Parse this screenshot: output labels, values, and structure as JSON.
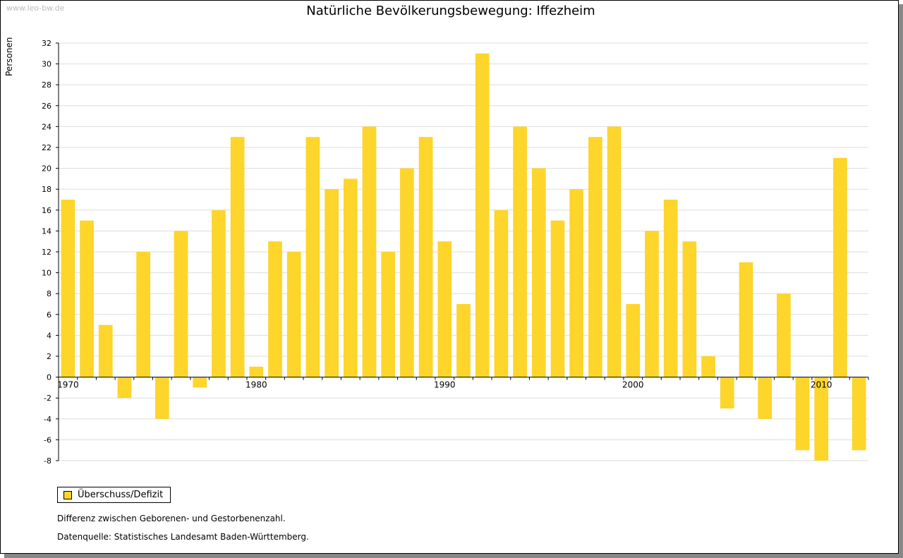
{
  "watermark": "www.leo-bw.de",
  "chart_data": {
    "type": "bar",
    "title": "Natürliche Bevölkerungsbewegung: Iffezheim",
    "ylabel": "Personen",
    "xlabel": "",
    "ylim": [
      -8,
      32
    ],
    "yticks": [
      -8,
      -6,
      -4,
      -2,
      0,
      2,
      4,
      6,
      8,
      10,
      12,
      14,
      16,
      18,
      20,
      22,
      24,
      26,
      28,
      30,
      32
    ],
    "xtick_labels": [
      "1970",
      "1980",
      "1990",
      "2000",
      "2010"
    ],
    "grid": true,
    "legend_position": "bottom-left",
    "color": "#FDD52B",
    "series": [
      {
        "name": "Überschuss/Defizit",
        "x": [
          1970,
          1971,
          1972,
          1973,
          1974,
          1975,
          1976,
          1977,
          1978,
          1979,
          1980,
          1981,
          1982,
          1983,
          1984,
          1985,
          1986,
          1987,
          1988,
          1989,
          1990,
          1991,
          1992,
          1993,
          1994,
          1995,
          1996,
          1997,
          1998,
          1999,
          2000,
          2001,
          2002,
          2003,
          2004,
          2005,
          2006,
          2007,
          2008,
          2009,
          2010,
          2011,
          2012
        ],
        "values": [
          17,
          15,
          5,
          -2,
          12,
          -4,
          14,
          -1,
          16,
          23,
          1,
          13,
          12,
          23,
          18,
          19,
          24,
          12,
          20,
          23,
          13,
          7,
          31,
          16,
          24,
          20,
          15,
          18,
          23,
          24,
          7,
          14,
          17,
          13,
          2,
          -3,
          11,
          -4,
          8,
          -7,
          -8,
          21,
          -7
        ]
      }
    ]
  },
  "notes": [
    "Differenz zwischen Geborenen- und Gestorbenenzahl.",
    "Datenquelle: Statistisches Landesamt Baden-Württemberg."
  ]
}
